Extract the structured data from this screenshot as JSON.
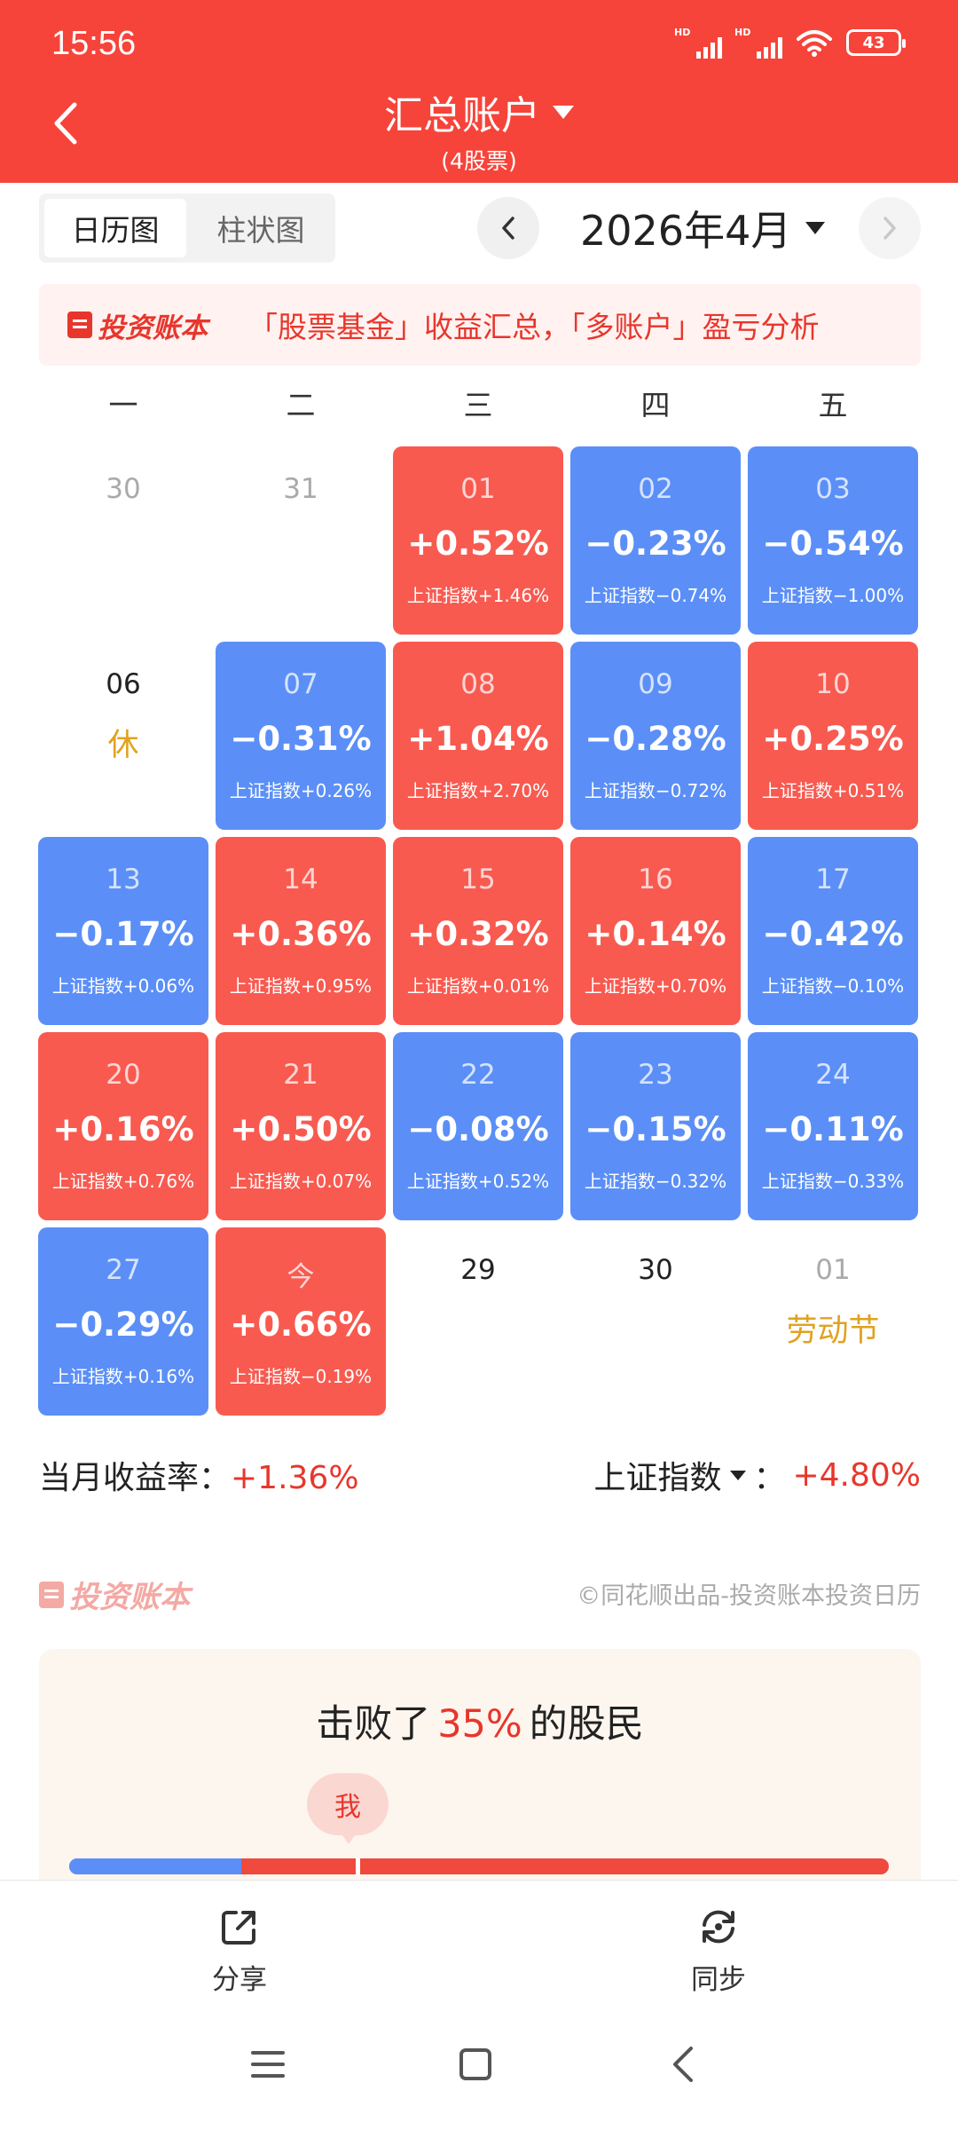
{
  "status_bar": {
    "time": "15:56",
    "network_label": "HD",
    "battery": "43"
  },
  "header": {
    "title": "汇总账户",
    "subtitle": "(4股票)"
  },
  "view_toggle": {
    "calendar": "日历图",
    "bar": "柱状图"
  },
  "month": {
    "label": "2026年4月"
  },
  "banner": {
    "brand": "投资账本",
    "text": "「股票基金」收益汇总，「多账户」盈亏分析"
  },
  "weekdays": [
    "一",
    "二",
    "三",
    "四",
    "五"
  ],
  "calendar": {
    "rows": [
      [
        {
          "day": "30",
          "kind": "plain"
        },
        {
          "day": "31",
          "kind": "plain"
        },
        {
          "day": "01",
          "kind": "up",
          "rate": "+0.52%",
          "index": "上证指数+1.46%"
        },
        {
          "day": "02",
          "kind": "down",
          "rate": "−0.23%",
          "index": "上证指数−0.74%"
        },
        {
          "day": "03",
          "kind": "down",
          "rate": "−0.54%",
          "index": "上证指数−1.00%"
        }
      ],
      [
        {
          "day": "06",
          "kind": "plain",
          "dark": true,
          "note": "休"
        },
        {
          "day": "07",
          "kind": "down",
          "rate": "−0.31%",
          "index": "上证指数+0.26%"
        },
        {
          "day": "08",
          "kind": "up",
          "rate": "+1.04%",
          "index": "上证指数+2.70%"
        },
        {
          "day": "09",
          "kind": "down",
          "rate": "−0.28%",
          "index": "上证指数−0.72%"
        },
        {
          "day": "10",
          "kind": "up",
          "rate": "+0.25%",
          "index": "上证指数+0.51%"
        }
      ],
      [
        {
          "day": "13",
          "kind": "down",
          "rate": "−0.17%",
          "index": "上证指数+0.06%"
        },
        {
          "day": "14",
          "kind": "up",
          "rate": "+0.36%",
          "index": "上证指数+0.95%"
        },
        {
          "day": "15",
          "kind": "up",
          "rate": "+0.32%",
          "index": "上证指数+0.01%"
        },
        {
          "day": "16",
          "kind": "up",
          "rate": "+0.14%",
          "index": "上证指数+0.70%"
        },
        {
          "day": "17",
          "kind": "down",
          "rate": "−0.42%",
          "index": "上证指数−0.10%"
        }
      ],
      [
        {
          "day": "20",
          "kind": "up",
          "rate": "+0.16%",
          "index": "上证指数+0.76%"
        },
        {
          "day": "21",
          "kind": "up",
          "rate": "+0.50%",
          "index": "上证指数+0.07%"
        },
        {
          "day": "22",
          "kind": "down",
          "rate": "−0.08%",
          "index": "上证指数+0.52%"
        },
        {
          "day": "23",
          "kind": "down",
          "rate": "−0.15%",
          "index": "上证指数−0.32%"
        },
        {
          "day": "24",
          "kind": "down",
          "rate": "−0.11%",
          "index": "上证指数−0.33%"
        }
      ],
      [
        {
          "day": "27",
          "kind": "down",
          "rate": "−0.29%",
          "index": "上证指数+0.16%"
        },
        {
          "day": "今",
          "kind": "up",
          "rate": "+0.66%",
          "index": "上证指数−0.19%"
        },
        {
          "day": "29",
          "kind": "plain",
          "dark": true
        },
        {
          "day": "30",
          "kind": "plain",
          "dark": true
        },
        {
          "day": "01",
          "kind": "plain",
          "note": "劳动节"
        }
      ]
    ]
  },
  "summary": {
    "monthly_label": "当月收益率：",
    "monthly_value": "+1.36%",
    "index_label": "上证指数",
    "index_colon": "：",
    "index_value": "+4.80%"
  },
  "footer": {
    "brand": "投资账本",
    "credit": "©同花顺出品-投资账本投资日历"
  },
  "rank": {
    "prefix": "击败了",
    "percent": "35%",
    "suffix": "的股民",
    "me_label": "我",
    "beaten_fraction": 0.35
  },
  "actions": {
    "share": "分享",
    "sync": "同步"
  },
  "colors": {
    "header_red": "#f6443a",
    "gain_red": "#f85a50",
    "loss_blue": "#5b8ff7",
    "holiday_gold": "#e0a220"
  }
}
